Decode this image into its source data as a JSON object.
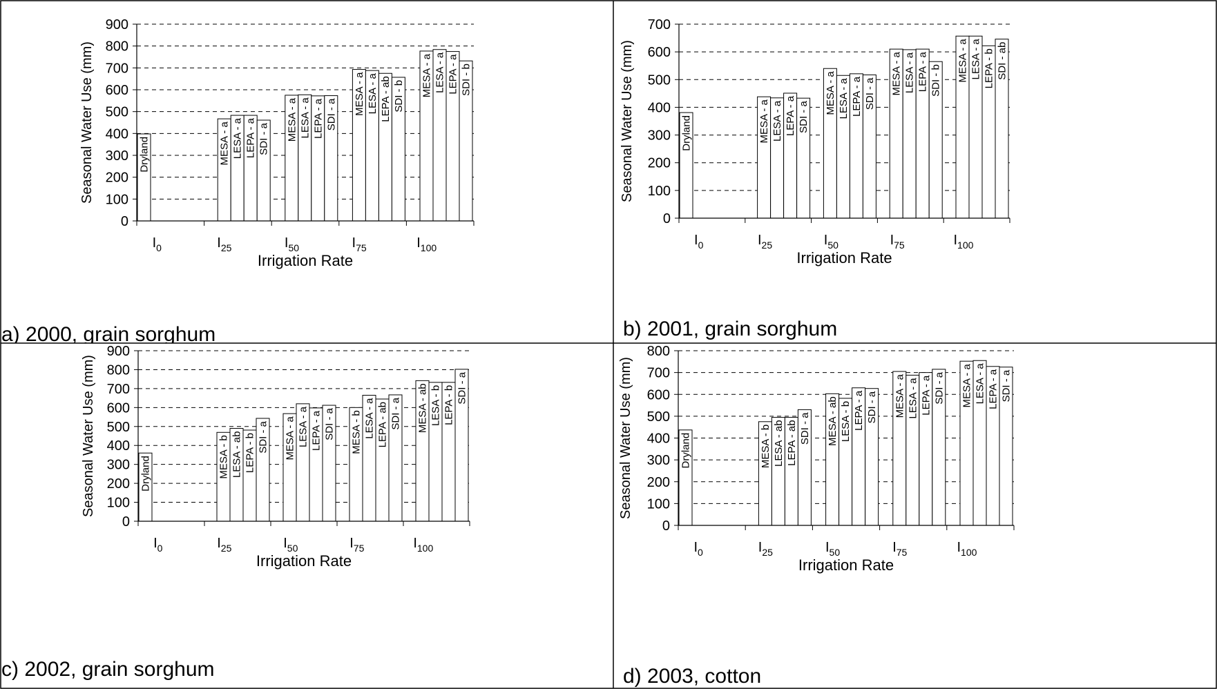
{
  "chart_data": [
    {
      "type": "bar",
      "caption": "a) 2000, grain sorghum",
      "ylabel": "Seasonal Water Use (mm)",
      "xlabel": "Irrigation Rate",
      "ylim": [
        0,
        900
      ],
      "yticks": [
        0,
        100,
        200,
        300,
        400,
        500,
        600,
        700,
        800,
        900
      ],
      "grid": "dashed horizontal",
      "groups": [
        {
          "label_base": "I",
          "label_sub": "0",
          "bars": [
            {
              "value": 398,
              "label": "Dryland"
            }
          ]
        },
        {
          "label_base": "I",
          "label_sub": "25",
          "bars": [
            {
              "value": 467,
              "label": "MESA - a"
            },
            {
              "value": 483,
              "label": "LESA - a"
            },
            {
              "value": 483,
              "label": "LEPA - a"
            },
            {
              "value": 461,
              "label": "SDI   - a"
            }
          ]
        },
        {
          "label_base": "I",
          "label_sub": "50",
          "bars": [
            {
              "value": 575,
              "label": "MESA - a"
            },
            {
              "value": 577,
              "label": "LESA - a"
            },
            {
              "value": 572,
              "label": "LEPA - a"
            },
            {
              "value": 573,
              "label": "SDI   - a"
            }
          ]
        },
        {
          "label_base": "I",
          "label_sub": "75",
          "bars": [
            {
              "value": 693,
              "label": "MESA - a"
            },
            {
              "value": 688,
              "label": "LESA - a"
            },
            {
              "value": 675,
              "label": "LEPA - ab"
            },
            {
              "value": 657,
              "label": "SDI   - b"
            }
          ]
        },
        {
          "label_base": "I",
          "label_sub": "100",
          "bars": [
            {
              "value": 777,
              "label": "MESA - a"
            },
            {
              "value": 784,
              "label": "LESA - a"
            },
            {
              "value": 775,
              "label": "LEPA - a"
            },
            {
              "value": 732,
              "label": "SDI   - b"
            }
          ]
        }
      ]
    },
    {
      "type": "bar",
      "caption": "b) 2001, grain sorghum",
      "ylabel": "Seasonal Water Use (mm)",
      "xlabel": "Irrigation Rate",
      "ylim": [
        0,
        700
      ],
      "yticks": [
        0,
        100,
        200,
        300,
        400,
        500,
        600,
        700
      ],
      "grid": "dashed horizontal",
      "groups": [
        {
          "label_base": "I",
          "label_sub": "0",
          "bars": [
            {
              "value": 381,
              "label": "Dryland"
            }
          ]
        },
        {
          "label_base": "I",
          "label_sub": "25",
          "bars": [
            {
              "value": 438,
              "label": "MESA - a"
            },
            {
              "value": 434,
              "label": "LESA - a"
            },
            {
              "value": 451,
              "label": "LEPA - a"
            },
            {
              "value": 433,
              "label": "SDI   - a"
            }
          ]
        },
        {
          "label_base": "I",
          "label_sub": "50",
          "bars": [
            {
              "value": 540,
              "label": "MESA - a"
            },
            {
              "value": 515,
              "label": "LESA - a"
            },
            {
              "value": 521,
              "label": "LEPA - a"
            },
            {
              "value": 517,
              "label": "SDI   - a"
            }
          ]
        },
        {
          "label_base": "I",
          "label_sub": "75",
          "bars": [
            {
              "value": 610,
              "label": "MESA - a"
            },
            {
              "value": 608,
              "label": "LESA - a"
            },
            {
              "value": 610,
              "label": "LEPA - a"
            },
            {
              "value": 565,
              "label": "SDI   - b"
            }
          ]
        },
        {
          "label_base": "I",
          "label_sub": "100",
          "bars": [
            {
              "value": 657,
              "label": "MESA - a"
            },
            {
              "value": 657,
              "label": "LESA - a"
            },
            {
              "value": 622,
              "label": "LEPA - b"
            },
            {
              "value": 646,
              "label": "SDI   - ab"
            }
          ]
        }
      ]
    },
    {
      "type": "bar",
      "caption": "c) 2002, grain sorghum",
      "ylabel": "Seasonal Water Use (mm)",
      "xlabel": "Irrigation Rate",
      "ylim": [
        0,
        900
      ],
      "yticks": [
        0,
        100,
        200,
        300,
        400,
        500,
        600,
        700,
        800,
        900
      ],
      "grid": "dashed horizontal",
      "groups": [
        {
          "label_base": "I",
          "label_sub": "0",
          "bars": [
            {
              "value": 360,
              "label": "Dryland"
            }
          ]
        },
        {
          "label_base": "I",
          "label_sub": "25",
          "bars": [
            {
              "value": 469,
              "label": "MESA - b"
            },
            {
              "value": 490,
              "label": "LESA - ab"
            },
            {
              "value": 481,
              "label": "LEPA - b"
            },
            {
              "value": 543,
              "label": "SDI   - a"
            }
          ]
        },
        {
          "label_base": "I",
          "label_sub": "50",
          "bars": [
            {
              "value": 568,
              "label": "MESA - a"
            },
            {
              "value": 620,
              "label": "LESA - a"
            },
            {
              "value": 598,
              "label": "LEPA - a"
            },
            {
              "value": 612,
              "label": "SDI   - a"
            }
          ]
        },
        {
          "label_base": "I",
          "label_sub": "75",
          "bars": [
            {
              "value": 600,
              "label": "MESA - b"
            },
            {
              "value": 665,
              "label": "LESA - a"
            },
            {
              "value": 645,
              "label": "LEPA - ab"
            },
            {
              "value": 667,
              "label": "SDI   - a"
            }
          ]
        },
        {
          "label_base": "I",
          "label_sub": "100",
          "bars": [
            {
              "value": 742,
              "label": "MESA - ab"
            },
            {
              "value": 733,
              "label": "LESA - b"
            },
            {
              "value": 733,
              "label": "LEPA - b"
            },
            {
              "value": 802,
              "label": "SDI   - a"
            }
          ]
        }
      ]
    },
    {
      "type": "bar",
      "caption": "d) 2003, cotton",
      "ylabel": "Seasonal Water Use (mm)",
      "xlabel": "Irrigation Rate",
      "ylim": [
        0,
        800
      ],
      "yticks": [
        0,
        100,
        200,
        300,
        400,
        500,
        600,
        700,
        800
      ],
      "grid": "dashed horizontal",
      "groups": [
        {
          "label_base": "I",
          "label_sub": "0",
          "bars": [
            {
              "value": 437,
              "label": "Dryland"
            }
          ]
        },
        {
          "label_base": "I",
          "label_sub": "25",
          "bars": [
            {
              "value": 475,
              "label": "MESA - b"
            },
            {
              "value": 495,
              "label": "LESA - ab"
            },
            {
              "value": 495,
              "label": "LEPA - ab"
            },
            {
              "value": 530,
              "label": "SDI   - a"
            }
          ]
        },
        {
          "label_base": "I",
          "label_sub": "50",
          "bars": [
            {
              "value": 603,
              "label": "MESA - ab"
            },
            {
              "value": 582,
              "label": "LESA - b"
            },
            {
              "value": 630,
              "label": "LEPA - a"
            },
            {
              "value": 627,
              "label": "SDI   - a"
            }
          ]
        },
        {
          "label_base": "I",
          "label_sub": "75",
          "bars": [
            {
              "value": 705,
              "label": "MESA - a"
            },
            {
              "value": 688,
              "label": "LESA - a"
            },
            {
              "value": 700,
              "label": "LEPA - a"
            },
            {
              "value": 715,
              "label": "SDI   - a"
            }
          ]
        },
        {
          "label_base": "I",
          "label_sub": "100",
          "bars": [
            {
              "value": 752,
              "label": "MESA - a"
            },
            {
              "value": 755,
              "label": "LESA - a"
            },
            {
              "value": 728,
              "label": "LEPA - a"
            },
            {
              "value": 725,
              "label": "SDI   - a"
            }
          ]
        }
      ]
    }
  ]
}
